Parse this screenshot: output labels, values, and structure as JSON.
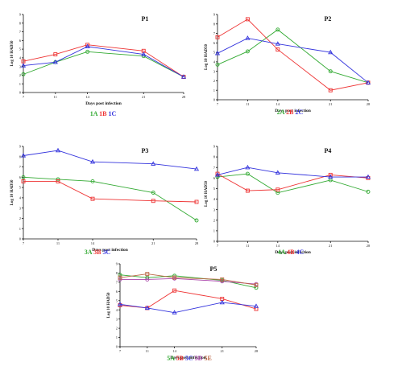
{
  "colors": {
    "A": "#33aa33",
    "B": "#ee3333",
    "C": "#3333dd",
    "D": "#aa44aa",
    "E": "#bb6644"
  },
  "chart_data": [
    {
      "type": "line",
      "title": "P1",
      "xlabel": "Days post infection",
      "ylabel": "Log 10 HAD50",
      "categories": [
        "7",
        "11",
        "14",
        "21",
        "28"
      ],
      "yticks": [
        "0",
        "1",
        "2",
        "3",
        "4",
        "5",
        "6",
        "7",
        "8",
        "9"
      ],
      "ylim": [
        0,
        9
      ],
      "series": [
        {
          "name": "1A",
          "color": "#33aa33",
          "marker": "circle",
          "values": [
            2.1,
            3.5,
            4.7,
            4.2,
            1.8
          ]
        },
        {
          "name": "1B",
          "color": "#ee3333",
          "marker": "square",
          "values": [
            3.6,
            4.4,
            5.5,
            4.8,
            1.8
          ]
        },
        {
          "name": "1C",
          "color": "#3333dd",
          "marker": "triangle",
          "values": [
            3.1,
            3.5,
            5.3,
            4.4,
            1.8
          ]
        }
      ]
    },
    {
      "type": "line",
      "title": "P2",
      "xlabel": "Days post infection",
      "ylabel": "Log 10 HAD50",
      "categories": [
        "7",
        "11",
        "14",
        "21",
        "28"
      ],
      "yticks": [
        "0",
        "1",
        "2",
        "3",
        "4",
        "5",
        "6",
        "7",
        "8",
        "9"
      ],
      "ylim": [
        0,
        9
      ],
      "series": [
        {
          "name": "2A",
          "color": "#33aa33",
          "marker": "circle",
          "values": [
            3.7,
            5.1,
            7.4,
            3.0,
            1.8
          ]
        },
        {
          "name": "2B",
          "color": "#ee3333",
          "marker": "square",
          "values": [
            6.6,
            8.5,
            5.3,
            1.0,
            1.8
          ]
        },
        {
          "name": "2C",
          "color": "#3333dd",
          "marker": "triangle",
          "values": [
            4.9,
            6.5,
            5.9,
            5.0,
            1.8
          ]
        }
      ]
    },
    {
      "type": "line",
      "title": "P3",
      "xlabel": "Days post infection",
      "ylabel": "Log 10 HAD50",
      "categories": [
        "7",
        "11",
        "14",
        "21",
        "28"
      ],
      "yticks": [
        "0",
        "1",
        "2",
        "3",
        "4",
        "5",
        "6",
        "7",
        "8",
        "9"
      ],
      "ylim": [
        0,
        9
      ],
      "series": [
        {
          "name": "3A",
          "color": "#33aa33",
          "marker": "circle",
          "values": [
            6.0,
            5.8,
            5.6,
            4.5,
            1.8
          ]
        },
        {
          "name": "3B",
          "color": "#ee3333",
          "marker": "square",
          "values": [
            5.6,
            5.6,
            3.9,
            3.7,
            3.6
          ]
        },
        {
          "name": "3C",
          "color": "#3333dd",
          "marker": "triangle",
          "values": [
            8.1,
            8.6,
            7.5,
            7.3,
            6.8
          ]
        }
      ]
    },
    {
      "type": "line",
      "title": "P4",
      "xlabel": "Days post infection",
      "ylabel": "Log 10 HAD50",
      "categories": [
        "7",
        "11",
        "14",
        "21",
        "28"
      ],
      "yticks": [
        "0",
        "1",
        "2",
        "3",
        "4",
        "5",
        "6",
        "7",
        "8",
        "9"
      ],
      "ylim": [
        0,
        9
      ],
      "series": [
        {
          "name": "4A",
          "color": "#33aa33",
          "marker": "circle",
          "values": [
            6.1,
            6.4,
            4.6,
            5.8,
            4.7
          ]
        },
        {
          "name": "4B",
          "color": "#ee3333",
          "marker": "square",
          "values": [
            6.4,
            4.8,
            4.9,
            6.3,
            6.0
          ]
        },
        {
          "name": "4C",
          "color": "#3333dd",
          "marker": "triangle",
          "values": [
            6.3,
            7.0,
            6.5,
            6.1,
            6.1
          ]
        }
      ]
    },
    {
      "type": "line",
      "title": "P5",
      "xlabel": "Days post infection",
      "ylabel": "Log 10 HAD50",
      "categories": [
        "7",
        "11",
        "14",
        "21",
        "28"
      ],
      "yticks": [
        "0",
        "1",
        "2",
        "3",
        "4",
        "5",
        "6",
        "7",
        "8",
        "9"
      ],
      "ylim": [
        0,
        9
      ],
      "series": [
        {
          "name": "5A",
          "color": "#33aa33",
          "marker": "circle",
          "values": [
            7.8,
            7.5,
            7.7,
            7.2,
            6.4
          ]
        },
        {
          "name": "5B",
          "color": "#ee3333",
          "marker": "square",
          "values": [
            4.5,
            4.2,
            6.1,
            5.2,
            4.1
          ]
        },
        {
          "name": "5C",
          "color": "#3333dd",
          "marker": "triangle",
          "values": [
            4.6,
            4.2,
            3.7,
            4.8,
            4.4
          ]
        },
        {
          "name": "5D",
          "color": "#aa44aa",
          "marker": "circle",
          "values": [
            7.3,
            7.3,
            7.4,
            7.1,
            6.8
          ]
        },
        {
          "name": "5E",
          "color": "#bb6644",
          "marker": "square",
          "values": [
            7.5,
            7.9,
            7.5,
            7.3,
            6.7
          ]
        }
      ]
    }
  ]
}
